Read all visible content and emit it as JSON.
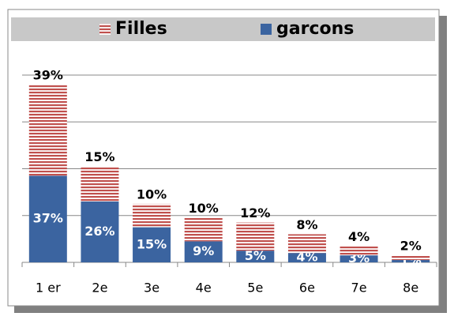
{
  "chart_data": {
    "type": "stacked_bar",
    "categories": [
      "1 er",
      "2e",
      "3e",
      "4e",
      "5e",
      "6e",
      "7e",
      "8e"
    ],
    "series": [
      {
        "name": "garcons",
        "color": "#3b64a0",
        "values": [
          37,
          26,
          15,
          9,
          5,
          4,
          3,
          1
        ],
        "value_labels": [
          "37%",
          "26%",
          "15%",
          "9%",
          "5%",
          "4%",
          "3%",
          "1%"
        ]
      },
      {
        "name": "Filles",
        "color": "#c0504d",
        "values": [
          39,
          15,
          10,
          10,
          12,
          8,
          4,
          2
        ],
        "value_labels": [
          "39%",
          "15%",
          "10%",
          "10%",
          "12%",
          "8%",
          "4%",
          "2%"
        ]
      }
    ],
    "ylim": [
      0,
      80
    ],
    "yticks": [
      0,
      20,
      40,
      60,
      80
    ],
    "grid": true,
    "legend": "top"
  }
}
